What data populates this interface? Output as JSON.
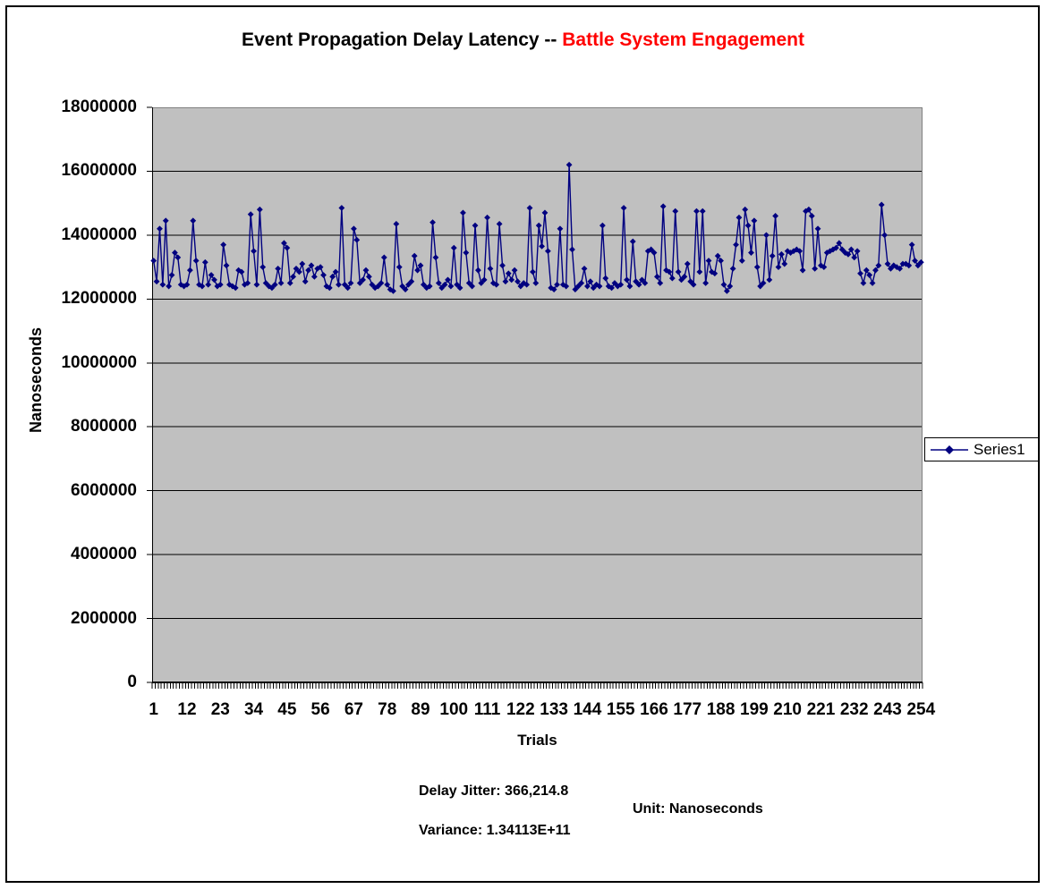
{
  "window": {
    "background": "#FFFFFF",
    "border_color": "#000000"
  },
  "chart": {
    "title_black": "Event Propagation Delay Latency -- ",
    "title_red": "Battle System Engagement",
    "title_red_color": "#FF0000",
    "y_axis_title": "Nanoseconds",
    "x_axis_title": "Trials",
    "legend": {
      "series_label": "Series1"
    },
    "stats": {
      "delay_jitter": "Delay Jitter: 366,214.8",
      "variance": "Variance: 1.34113E+11",
      "unit": "Unit: Nanoseconds"
    }
  },
  "chart_data": {
    "type": "line",
    "title": "Event Propagation Delay Latency -- Battle System Engagement",
    "xlabel": "Trials",
    "ylabel": "Nanoseconds",
    "ylim": [
      0,
      18000000
    ],
    "y_tick_step": 2000000,
    "y_ticks": [
      0,
      2000000,
      4000000,
      6000000,
      8000000,
      10000000,
      12000000,
      14000000,
      16000000,
      18000000
    ],
    "x_tick_labels": [
      1,
      12,
      23,
      34,
      45,
      56,
      67,
      78,
      89,
      100,
      111,
      122,
      133,
      144,
      155,
      166,
      177,
      188,
      199,
      210,
      221,
      232,
      243,
      254
    ],
    "n_points": 254,
    "grid": true,
    "legend_position": "right",
    "plot_bg_color": "#C0C0C0",
    "gridline_color": "#000000",
    "plot_border_color": "#808080",
    "axis_color": "#000000",
    "series": [
      {
        "name": "Series1",
        "color": "#000080",
        "marker": "diamond",
        "values": [
          13200000,
          12550000,
          14200000,
          12450000,
          14450000,
          12400000,
          12750000,
          13450000,
          13300000,
          12450000,
          12400000,
          12450000,
          12900000,
          14450000,
          13200000,
          12450000,
          12400000,
          13150000,
          12450000,
          12750000,
          12600000,
          12400000,
          12450000,
          13700000,
          13050000,
          12450000,
          12400000,
          12350000,
          12900000,
          12850000,
          12450000,
          12500000,
          14650000,
          13500000,
          12450000,
          14800000,
          13000000,
          12500000,
          12400000,
          12350000,
          12450000,
          12950000,
          12500000,
          13750000,
          13600000,
          12500000,
          12700000,
          12950000,
          12850000,
          13100000,
          12550000,
          12900000,
          13050000,
          12700000,
          12950000,
          13000000,
          12750000,
          12400000,
          12350000,
          12700000,
          12850000,
          12450000,
          14850000,
          12450000,
          12350000,
          12500000,
          14200000,
          13850000,
          12500000,
          12600000,
          12900000,
          12700000,
          12450000,
          12350000,
          12400000,
          12500000,
          13300000,
          12450000,
          12300000,
          12250000,
          14350000,
          13000000,
          12400000,
          12300000,
          12450000,
          12550000,
          13350000,
          12900000,
          13050000,
          12450000,
          12350000,
          12400000,
          14400000,
          13300000,
          12500000,
          12350000,
          12450000,
          12600000,
          12400000,
          13600000,
          12450000,
          12350000,
          14700000,
          13450000,
          12500000,
          12400000,
          14300000,
          12900000,
          12500000,
          12600000,
          14550000,
          12950000,
          12500000,
          12450000,
          14350000,
          13050000,
          12550000,
          12800000,
          12600000,
          12900000,
          12550000,
          12400000,
          12500000,
          12450000,
          14850000,
          12850000,
          12500000,
          14300000,
          13650000,
          14700000,
          13500000,
          12350000,
          12300000,
          12450000,
          14200000,
          12450000,
          12400000,
          16200000,
          13550000,
          12300000,
          12400000,
          12500000,
          12950000,
          12400000,
          12550000,
          12350000,
          12450000,
          12400000,
          14300000,
          12650000,
          12400000,
          12350000,
          12500000,
          12400000,
          12450000,
          14850000,
          12600000,
          12400000,
          13800000,
          12550000,
          12450000,
          12600000,
          12500000,
          13500000,
          13550000,
          13450000,
          12700000,
          12500000,
          14900000,
          12900000,
          12850000,
          12650000,
          14750000,
          12850000,
          12600000,
          12700000,
          13100000,
          12550000,
          12450000,
          14750000,
          12850000,
          14750000,
          12500000,
          13200000,
          12850000,
          12800000,
          13350000,
          13200000,
          12450000,
          12250000,
          12400000,
          12950000,
          13700000,
          14550000,
          13200000,
          14800000,
          14300000,
          13450000,
          14450000,
          13000000,
          12400000,
          12500000,
          14000000,
          12600000,
          13350000,
          14600000,
          13000000,
          13400000,
          13100000,
          13500000,
          13450000,
          13500000,
          13550000,
          13500000,
          12900000,
          14750000,
          14800000,
          14600000,
          12950000,
          14200000,
          13050000,
          13000000,
          13450000,
          13500000,
          13550000,
          13600000,
          13750000,
          13550000,
          13450000,
          13400000,
          13550000,
          13300000,
          13500000,
          12800000,
          12500000,
          12900000,
          12750000,
          12500000,
          12900000,
          13050000,
          14950000,
          14000000,
          13100000,
          12950000,
          13050000,
          13000000,
          12950000,
          13100000,
          13100000,
          13050000,
          13700000,
          13200000,
          13050000,
          13150000
        ]
      }
    ]
  }
}
